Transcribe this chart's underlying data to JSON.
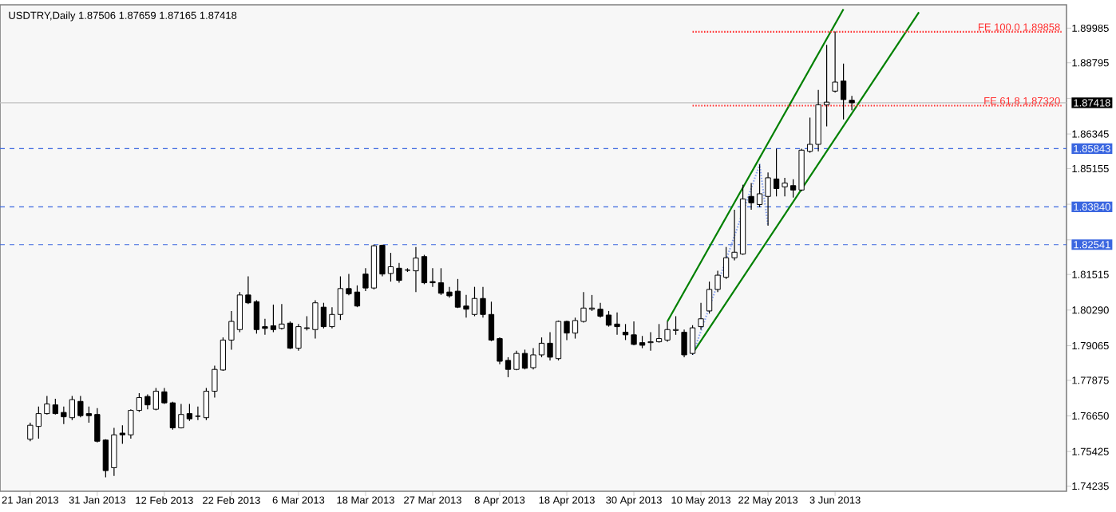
{
  "chart_data": {
    "type": "candlestick",
    "title": "USDTRY,Daily 1.87506 1.87659 1.87165 1.87418",
    "categories": [
      "21 Jan 2013",
      null,
      null,
      null,
      null,
      null,
      null,
      null,
      "31 Jan 2013",
      null,
      null,
      null,
      null,
      null,
      null,
      null,
      "12 Feb 2013",
      null,
      null,
      null,
      null,
      null,
      null,
      null,
      "22 Feb 2013",
      null,
      null,
      null,
      null,
      null,
      null,
      null,
      "6 Mar 2013",
      null,
      null,
      null,
      null,
      null,
      null,
      null,
      "18 Mar 2013",
      null,
      null,
      null,
      null,
      null,
      null,
      null,
      "27 Mar 2013",
      null,
      null,
      null,
      null,
      null,
      null,
      null,
      "8 Apr 2013",
      null,
      null,
      null,
      null,
      null,
      null,
      null,
      "18 Apr 2013",
      null,
      null,
      null,
      null,
      null,
      null,
      null,
      "30 Apr 2013",
      null,
      null,
      null,
      null,
      null,
      null,
      null,
      "10 May 2013",
      null,
      null,
      null,
      null,
      null,
      null,
      null,
      "22 May 2013",
      null,
      null,
      null,
      null,
      null,
      null,
      null,
      "3 Jun 2013",
      null,
      null,
      null,
      null,
      null,
      null,
      null,
      null,
      null,
      null,
      null,
      null,
      null,
      null,
      null,
      null,
      null,
      null,
      null,
      null,
      null,
      null,
      null,
      null,
      null,
      null,
      null
    ],
    "ohlc": [
      [
        1.7585,
        1.7642,
        1.7578,
        1.7633
      ],
      [
        1.7629,
        1.7697,
        1.7587,
        1.7673
      ],
      [
        1.7673,
        1.7734,
        1.767,
        1.7706
      ],
      [
        1.7703,
        1.7724,
        1.767,
        1.7673
      ],
      [
        1.7677,
        1.7697,
        1.7637,
        1.7662
      ],
      [
        1.7659,
        1.7734,
        1.7651,
        1.7721
      ],
      [
        1.7715,
        1.7734,
        1.766,
        1.7666
      ],
      [
        1.7673,
        1.7697,
        1.7642,
        1.7666
      ],
      [
        1.767,
        1.7692,
        1.7574,
        1.7578
      ],
      [
        1.7582,
        1.7585,
        1.7454,
        1.7477
      ],
      [
        1.7487,
        1.7624,
        1.7459,
        1.76
      ],
      [
        1.7606,
        1.7633,
        1.7569,
        1.76
      ],
      [
        1.76,
        1.7688,
        1.7587,
        1.7684
      ],
      [
        1.7684,
        1.7743,
        1.7679,
        1.7728
      ],
      [
        1.7732,
        1.7739,
        1.7688,
        1.7703
      ],
      [
        1.7688,
        1.7761,
        1.7684,
        1.775
      ],
      [
        1.7748,
        1.7761,
        1.7706,
        1.771
      ],
      [
        1.771,
        1.7714,
        1.7618,
        1.7624
      ],
      [
        1.7624,
        1.7706,
        1.7622,
        1.767
      ],
      [
        1.7673,
        1.7706,
        1.7648,
        1.7655
      ],
      [
        1.7664,
        1.7697,
        1.7651,
        1.7664
      ],
      [
        1.7659,
        1.7761,
        1.7651,
        1.775
      ],
      [
        1.775,
        1.7838,
        1.7728,
        1.7825
      ],
      [
        1.7823,
        1.7935,
        1.782,
        1.7926
      ],
      [
        1.7926,
        1.8026,
        1.7893,
        1.799
      ],
      [
        1.7962,
        1.8091,
        1.7953,
        1.8081
      ],
      [
        1.8081,
        1.8145,
        1.805,
        1.8054
      ],
      [
        1.8058,
        1.8063,
        1.7948,
        1.7962
      ],
      [
        1.7972,
        1.7999,
        1.7944,
        1.7966
      ],
      [
        1.7975,
        1.8048,
        1.7953,
        1.7962
      ],
      [
        1.7966,
        1.805,
        1.7962,
        1.7981
      ],
      [
        1.7984,
        1.799,
        1.7895,
        1.7898
      ],
      [
        1.7898,
        1.7981,
        1.7889,
        1.7972
      ],
      [
        1.7968,
        1.8008,
        1.7959,
        1.7966
      ],
      [
        1.7962,
        1.8063,
        1.7931,
        1.8054
      ],
      [
        1.8039,
        1.8054,
        1.7966,
        1.7972
      ],
      [
        1.7972,
        1.8039,
        1.7966,
        1.8014
      ],
      [
        1.8014,
        1.8145,
        1.7995,
        1.8103
      ],
      [
        1.8103,
        1.8153,
        1.808,
        1.8085
      ],
      [
        1.8091,
        1.8114,
        1.8039,
        1.8043
      ],
      [
        1.8153,
        1.8173,
        1.8094,
        1.8105
      ],
      [
        1.8105,
        1.8254,
        1.81,
        1.825
      ],
      [
        1.8252,
        1.8254,
        1.8145,
        1.8153
      ],
      [
        1.8155,
        1.8226,
        1.8127,
        1.8178
      ],
      [
        1.8173,
        1.8191,
        1.8123,
        1.8131
      ],
      [
        1.8167,
        1.8173,
        1.816,
        1.8166
      ],
      [
        1.8164,
        1.8246,
        1.8091,
        1.8208
      ],
      [
        1.8213,
        1.8219,
        1.8118,
        1.8123
      ],
      [
        1.8127,
        1.8173,
        1.8109,
        1.8123
      ],
      [
        1.8123,
        1.8173,
        1.8081,
        1.8087
      ],
      [
        1.8091,
        1.8109,
        1.8072,
        1.8078
      ],
      [
        1.8094,
        1.8136,
        1.8036,
        1.8039
      ],
      [
        1.8043,
        1.8081,
        1.8003,
        1.8032
      ],
      [
        1.8014,
        1.8109,
        1.8008,
        1.8069
      ],
      [
        1.8069,
        1.8109,
        1.8003,
        1.8014
      ],
      [
        1.8014,
        1.8058,
        1.7922,
        1.7926
      ],
      [
        1.7931,
        1.7935,
        1.7843,
        1.7853
      ],
      [
        1.7856,
        1.7867,
        1.7798,
        1.7825
      ],
      [
        1.7825,
        1.7889,
        1.7822,
        1.788
      ],
      [
        1.788,
        1.7893,
        1.7825,
        1.7829
      ],
      [
        1.7831,
        1.7898,
        1.7825,
        1.7875
      ],
      [
        1.7875,
        1.7935,
        1.7867,
        1.7915
      ],
      [
        1.7915,
        1.7953,
        1.7856,
        1.7867
      ],
      [
        1.7862,
        1.7993,
        1.7856,
        1.799
      ],
      [
        1.799,
        1.7993,
        1.7926,
        1.795
      ],
      [
        1.795,
        1.8003,
        1.7931,
        1.7993
      ],
      [
        1.799,
        1.8091,
        1.7986,
        1.8036
      ],
      [
        1.8032,
        1.8081,
        1.8026,
        1.8036
      ],
      [
        1.8032,
        1.8054,
        1.8003,
        1.8008
      ],
      [
        1.8012,
        1.8026,
        1.7972,
        1.7977
      ],
      [
        1.7981,
        1.8021,
        1.7944,
        1.7972
      ],
      [
        1.7953,
        1.7981,
        1.7926,
        1.7944
      ],
      [
        1.7944,
        1.799,
        1.7908,
        1.7911
      ],
      [
        1.7917,
        1.794,
        1.7898,
        1.7908
      ],
      [
        1.7917,
        1.7953,
        1.7889,
        1.792
      ],
      [
        1.792,
        1.7981,
        1.7917,
        1.7931
      ],
      [
        1.7926,
        1.799,
        1.792,
        1.7962
      ],
      [
        1.7959,
        1.8008,
        1.7944,
        1.7962
      ],
      [
        1.7953,
        1.7962,
        1.7867,
        1.7875
      ],
      [
        1.788,
        1.7977,
        1.7875,
        1.7968
      ],
      [
        1.7972,
        1.8054,
        1.7962,
        1.7999
      ],
      [
        1.8026,
        1.8127,
        1.8017,
        1.81
      ],
      [
        1.81,
        1.8164,
        1.8091,
        1.8149
      ],
      [
        1.8142,
        1.8246,
        1.8136,
        1.8209
      ],
      [
        1.8209,
        1.8374,
        1.82,
        1.8228
      ],
      [
        1.8222,
        1.846,
        1.8219,
        1.8411
      ],
      [
        1.842,
        1.8466,
        1.8374,
        1.8398
      ],
      [
        1.8392,
        1.853,
        1.8383,
        1.8429
      ],
      [
        1.842,
        1.8502,
        1.8319,
        1.8484
      ],
      [
        1.848,
        1.8584,
        1.842,
        1.8447
      ],
      [
        1.8453,
        1.8484,
        1.842,
        1.8466
      ],
      [
        1.8457,
        1.8479,
        1.8416,
        1.8442
      ],
      [
        1.8442,
        1.8584,
        1.8438,
        1.8579
      ],
      [
        1.8575,
        1.8691,
        1.857,
        1.8599
      ],
      [
        1.8599,
        1.8786,
        1.8575,
        1.8735
      ],
      [
        1.8735,
        1.8941,
        1.8661,
        1.8744
      ],
      [
        1.8782,
        1.8987,
        1.8777,
        1.8813
      ],
      [
        1.8817,
        1.8877,
        1.8685,
        1.8753
      ],
      [
        1.87506,
        1.87659,
        1.87165,
        1.87418
      ],
      null,
      null,
      null,
      null,
      null,
      null,
      null,
      null,
      null,
      null,
      null,
      null,
      null,
      null,
      null,
      null,
      null,
      null,
      null,
      null,
      null,
      null,
      null,
      null,
      null
    ],
    "series": [
      {
        "type": "line",
        "color": "#008000",
        "line_style": "solid",
        "values": [
          null,
          null,
          null,
          null,
          null,
          null,
          null,
          null,
          null,
          null,
          null,
          null,
          null,
          null,
          null,
          null,
          null,
          null,
          null,
          null,
          null,
          null,
          null,
          null,
          null,
          null,
          null,
          null,
          null,
          null,
          null,
          null,
          null,
          null,
          null,
          null,
          null,
          null,
          null,
          null,
          null,
          null,
          null,
          null,
          null,
          null,
          null,
          null,
          null,
          null,
          null,
          null,
          null,
          null,
          null,
          null,
          null,
          null,
          null,
          null,
          null,
          null,
          null,
          null,
          null,
          null,
          null,
          null,
          null,
          null,
          null,
          null,
          null,
          null,
          null,
          null,
          1.799,
          null,
          null,
          null,
          null,
          null,
          null,
          null,
          null,
          null,
          null,
          null,
          null,
          null,
          null,
          null,
          null,
          null,
          null,
          null,
          null,
          1.9064,
          null,
          null,
          null,
          null,
          null,
          null,
          null,
          null,
          null,
          null,
          null,
          null,
          null,
          null,
          null,
          null,
          null,
          null,
          null,
          null,
          null,
          null,
          null,
          null,
          null,
          null
        ]
      },
      {
        "type": "line",
        "color": "#008000",
        "line_style": "solid",
        "values": [
          null,
          null,
          null,
          null,
          null,
          null,
          null,
          null,
          null,
          null,
          null,
          null,
          null,
          null,
          null,
          null,
          null,
          null,
          null,
          null,
          null,
          null,
          null,
          null,
          null,
          null,
          null,
          null,
          null,
          null,
          null,
          null,
          null,
          null,
          null,
          null,
          null,
          null,
          null,
          null,
          null,
          null,
          null,
          null,
          null,
          null,
          null,
          null,
          null,
          null,
          null,
          null,
          null,
          null,
          null,
          null,
          null,
          null,
          null,
          null,
          null,
          null,
          null,
          null,
          null,
          null,
          null,
          null,
          null,
          null,
          null,
          null,
          null,
          null,
          null,
          null,
          null,
          null,
          null,
          1.788,
          null,
          null,
          null,
          null,
          null,
          null,
          null,
          null,
          null,
          null,
          null,
          null,
          null,
          null,
          null,
          null,
          null,
          null,
          null,
          null,
          null,
          null,
          null,
          null,
          null,
          null,
          1.9053,
          null,
          null,
          null,
          null,
          null,
          null,
          null,
          null,
          null,
          null,
          null,
          null,
          null,
          null,
          null,
          null,
          null
        ]
      },
      {
        "type": "line",
        "color": "#8aa4f0",
        "line_style": "dotted",
        "values": [
          null,
          null,
          null,
          null,
          null,
          null,
          null,
          null,
          null,
          null,
          null,
          null,
          null,
          null,
          null,
          null,
          null,
          null,
          null,
          null,
          null,
          null,
          null,
          null,
          null,
          null,
          null,
          null,
          null,
          null,
          null,
          null,
          null,
          null,
          null,
          null,
          null,
          null,
          null,
          null,
          null,
          null,
          null,
          null,
          null,
          null,
          null,
          null,
          null,
          null,
          null,
          null,
          null,
          null,
          null,
          null,
          null,
          null,
          null,
          null,
          null,
          null,
          null,
          null,
          null,
          null,
          null,
          null,
          null,
          null,
          null,
          null,
          null,
          null,
          null,
          null,
          null,
          null,
          null,
          1.7875,
          null,
          null,
          null,
          null,
          null,
          null,
          null,
          1.853,
          1.8319,
          null,
          null,
          null,
          null,
          null,
          null,
          null,
          null,
          null,
          null,
          null,
          null,
          null,
          null,
          null,
          null,
          null,
          null,
          null,
          null,
          null,
          null,
          null,
          null,
          null,
          null,
          null,
          null,
          null,
          null,
          null,
          null,
          null,
          null,
          null
        ]
      },
      {
        "type": "line",
        "name": "FE 100.0 1.89858",
        "color": "#ff3030",
        "line_style": "dotted",
        "values": [
          null,
          null,
          null,
          null,
          null,
          null,
          null,
          null,
          null,
          null,
          null,
          null,
          null,
          null,
          null,
          null,
          null,
          null,
          null,
          null,
          null,
          null,
          null,
          null,
          null,
          null,
          null,
          null,
          null,
          null,
          null,
          null,
          null,
          null,
          null,
          null,
          null,
          null,
          null,
          null,
          null,
          null,
          null,
          null,
          null,
          null,
          null,
          null,
          null,
          null,
          null,
          null,
          null,
          null,
          null,
          null,
          null,
          null,
          null,
          null,
          null,
          null,
          null,
          null,
          null,
          null,
          null,
          null,
          null,
          null,
          null,
          null,
          null,
          null,
          null,
          null,
          null,
          null,
          null,
          1.89858,
          null,
          null,
          null,
          null,
          null,
          null,
          null,
          null,
          null,
          null,
          null,
          null,
          null,
          null,
          null,
          null,
          null,
          null,
          null,
          null,
          null,
          null,
          null,
          null,
          null,
          null,
          null,
          null,
          null,
          null,
          null,
          null,
          null,
          null,
          null,
          null,
          null,
          null,
          null,
          null,
          null,
          null,
          null,
          1.89858
        ]
      },
      {
        "type": "line",
        "name": "FE 61.8 1.87320",
        "color": "#ff3030",
        "line_style": "dotted",
        "values": [
          null,
          null,
          null,
          null,
          null,
          null,
          null,
          null,
          null,
          null,
          null,
          null,
          null,
          null,
          null,
          null,
          null,
          null,
          null,
          null,
          null,
          null,
          null,
          null,
          null,
          null,
          null,
          null,
          null,
          null,
          null,
          null,
          null,
          null,
          null,
          null,
          null,
          null,
          null,
          null,
          null,
          null,
          null,
          null,
          null,
          null,
          null,
          null,
          null,
          null,
          null,
          null,
          null,
          null,
          null,
          null,
          null,
          null,
          null,
          null,
          null,
          null,
          null,
          null,
          null,
          null,
          null,
          null,
          null,
          null,
          null,
          null,
          null,
          null,
          null,
          null,
          null,
          null,
          null,
          1.8732,
          null,
          null,
          null,
          null,
          null,
          null,
          null,
          null,
          null,
          null,
          null,
          null,
          null,
          null,
          null,
          null,
          null,
          null,
          null,
          null,
          null,
          null,
          null,
          null,
          null,
          null,
          null,
          null,
          null,
          null,
          null,
          null,
          null,
          null,
          null,
          null,
          null,
          null,
          null,
          null,
          null,
          null,
          null,
          1.8732
        ]
      }
    ],
    "ref_lines": [
      {
        "axis": "y",
        "value": 1.87418,
        "label": "1.87418",
        "color": "#c0c0c0",
        "line_style": "solid"
      },
      {
        "axis": "y",
        "value": 1.85843,
        "label": "1.85843",
        "color": "#3a66e0",
        "line_style": "dashed"
      },
      {
        "axis": "y",
        "value": 1.8384,
        "label": "1.83840",
        "color": "#3a66e0",
        "line_style": "dashed"
      },
      {
        "axis": "y",
        "value": 1.82541,
        "label": "1.82541",
        "color": "#3a66e0",
        "line_style": "dashed"
      }
    ],
    "ylim": [
      1.7406,
      1.9079
    ],
    "yticks": [
      1.89985,
      1.88795,
      {
        "value": 1.8757,
        "label": null
      },
      1.86345,
      1.85155,
      {
        "value": 1.8393,
        "label": null
      },
      {
        "value": 1.82705,
        "label": null
      },
      1.81515,
      {
        "value": 1.8029,
        "label": "1.80290"
      },
      1.79065,
      1.77875,
      {
        "value": 1.7665,
        "label": "1.76650"
      },
      1.75425,
      1.74235
    ],
    "grid": false
  }
}
